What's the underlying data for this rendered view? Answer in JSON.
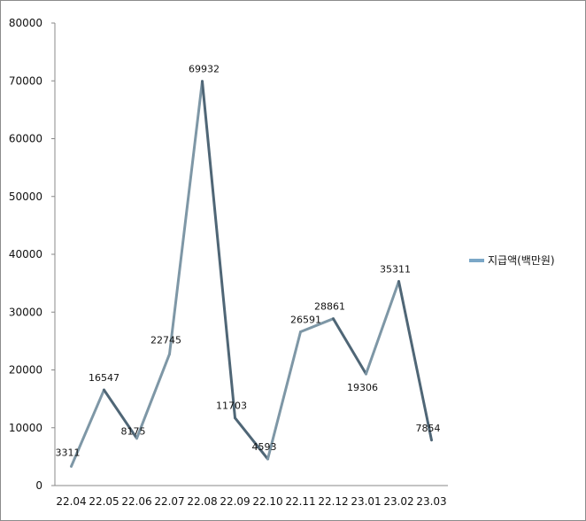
{
  "chart_data": {
    "type": "line",
    "title": "",
    "xlabel": "",
    "ylabel": "",
    "categories": [
      "22.04",
      "22.05",
      "22.06",
      "22.07",
      "22.08",
      "22.09",
      "22.10",
      "22.11",
      "22.12",
      "23.01",
      "23.02",
      "23.03"
    ],
    "series": [
      {
        "name": "지급액(백만원)",
        "values": [
          3311,
          16547,
          8175,
          22745,
          69932,
          11703,
          4593,
          26591,
          28861,
          19306,
          35311,
          7854
        ],
        "labels": [
          "3311",
          "16547",
          "8175",
          "22745",
          "69932",
          "11703",
          "4593",
          "26591",
          "28861",
          "19306",
          "35311",
          "7854"
        ],
        "color": "#6f8a9c"
      }
    ],
    "ylim": [
      0,
      80000
    ],
    "yticks": [
      "0",
      "10000",
      "20000",
      "30000",
      "40000",
      "50000",
      "60000",
      "70000",
      "80000"
    ],
    "ytick_values": [
      0,
      10000,
      20000,
      30000,
      40000,
      50000,
      60000,
      70000,
      80000
    ],
    "grid": false,
    "legend_position": "right",
    "legend_color": "#7ba7c7"
  }
}
